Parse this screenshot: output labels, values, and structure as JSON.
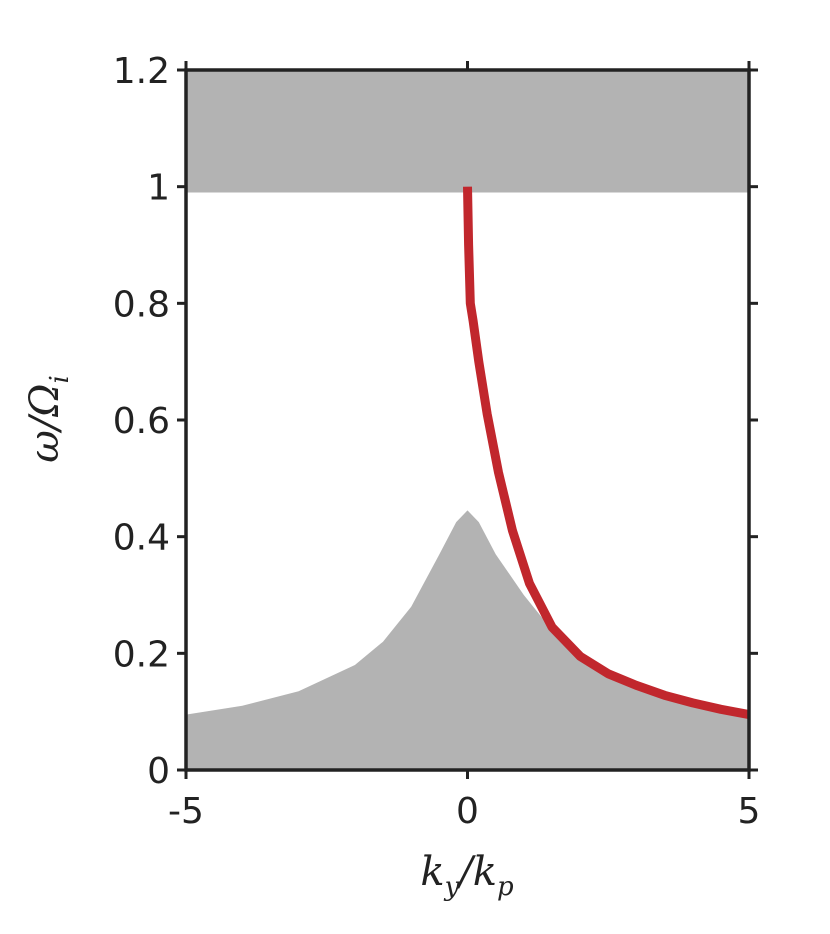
{
  "chart_data": {
    "type": "area",
    "title": "",
    "xlabel": "k_y/k_p",
    "ylabel": "ω/Ω_i",
    "xlim": [
      -5,
      5
    ],
    "ylim": [
      0,
      1.2
    ],
    "xticks": [
      -5,
      0,
      5
    ],
    "xtick_labels": [
      "-5",
      "0",
      "5"
    ],
    "yticks": [
      0,
      0.2,
      0.4,
      0.6,
      0.8,
      1.0,
      1.2
    ],
    "ytick_labels": [
      "0",
      "0.2",
      "0.4",
      "0.6",
      "0.8",
      "1",
      "1.2"
    ],
    "grid": false,
    "legend": "none",
    "colors": {
      "band": "#b3b3b3",
      "mode": "#c1272d",
      "axis": "#222222"
    },
    "bands": [
      {
        "kind": "lower-continuum",
        "x": [
          -5,
          -4,
          -3,
          -2,
          -1.5,
          -1,
          -0.5,
          -0.2,
          0,
          0.2,
          0.5,
          1,
          1.5,
          2,
          3,
          4,
          5
        ],
        "upper": [
          0.095,
          0.11,
          0.135,
          0.18,
          0.22,
          0.28,
          0.37,
          0.425,
          0.445,
          0.425,
          0.37,
          0.3,
          0.24,
          0.195,
          0.145,
          0.115,
          0.095
        ],
        "lower": [
          0,
          0,
          0,
          0,
          0,
          0,
          0,
          0,
          0,
          0,
          0,
          0,
          0,
          0,
          0,
          0,
          0
        ]
      },
      {
        "kind": "upper-continuum",
        "x": [
          -5,
          5
        ],
        "upper": [
          1.2,
          1.2
        ],
        "lower": [
          0.99,
          0.99
        ]
      }
    ],
    "series": [
      {
        "x": [
          0,
          0.02,
          0.05,
          0.1,
          0.2,
          0.35,
          0.55,
          0.8,
          1.1,
          1.5,
          2.0,
          2.5,
          3.0,
          3.5,
          4.0,
          4.5,
          5.0
        ],
        "y": [
          1.0,
          0.9,
          0.8,
          0.77,
          0.7,
          0.61,
          0.51,
          0.41,
          0.32,
          0.245,
          0.195,
          0.165,
          0.145,
          0.128,
          0.115,
          0.104,
          0.095
        ]
      }
    ]
  }
}
